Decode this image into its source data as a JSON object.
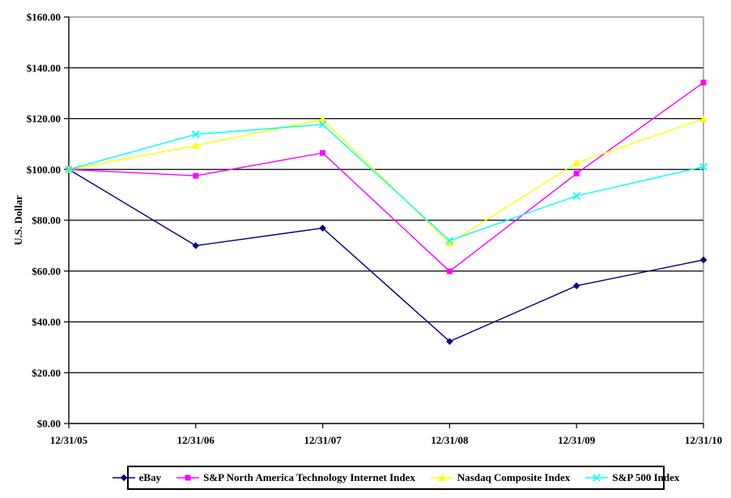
{
  "chart_data": {
    "type": "line",
    "title": "",
    "xlabel": "",
    "ylabel": "U.S. Dollar",
    "ylim": [
      0,
      160
    ],
    "ytick_step": 20,
    "ytick_labels": [
      "$0.00",
      "$20.00",
      "$40.00",
      "$60.00",
      "$80.00",
      "$100.00",
      "$120.00",
      "$140.00",
      "$160.00"
    ],
    "categories": [
      "12/31/05",
      "12/31/06",
      "12/31/07",
      "12/31/08",
      "12/31/09",
      "12/31/10"
    ],
    "series": [
      {
        "name": "eBay",
        "marker": "diamond",
        "color": "#000080",
        "values": [
          100.0,
          70.0,
          76.9,
          32.3,
          54.2,
          64.4
        ]
      },
      {
        "name": "S&P North America Technology Internet Index",
        "marker": "square",
        "color": "#FF00FF",
        "values": [
          100.0,
          97.5,
          106.5,
          59.9,
          98.4,
          134.2
        ]
      },
      {
        "name": "Nasdaq Composite Index",
        "marker": "triangle",
        "color": "#FFFF00",
        "values": [
          100.0,
          109.4,
          119.7,
          71.0,
          102.6,
          119.9
        ]
      },
      {
        "name": "S&P 500 Index",
        "marker": "x",
        "color": "#00FFFF",
        "values": [
          100.0,
          113.8,
          117.7,
          72.0,
          89.6,
          101.0
        ]
      }
    ],
    "grid": "horizontal",
    "legend_position": "bottom",
    "colors": {
      "gridline": "#000000",
      "plot_border": "#808080",
      "axis": "#000000",
      "text": "#000000",
      "background": "#FFFFFF"
    }
  }
}
